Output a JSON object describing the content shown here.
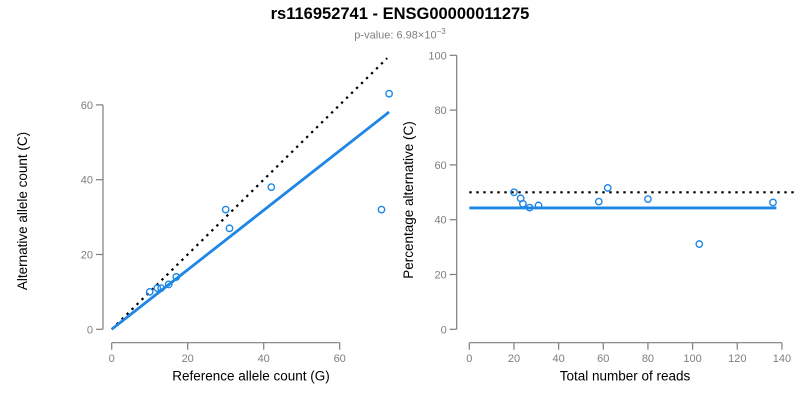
{
  "header": {
    "title": "rs116952741 - ENSG00000011275",
    "subtitle_prefix": "p-value: 6.98×10",
    "subtitle_exponent": "−3"
  },
  "colors": {
    "point_blue": "#1e87e5",
    "line_blue": "#1e87e5",
    "dotted_black": "#000000",
    "axis_gray": "#7e7e7e",
    "tick_label_gray": "#7e7e7e",
    "axis_label_black": "#000000",
    "subtitle_gray": "#7f7f7f"
  },
  "chart_data": [
    {
      "type": "scatter",
      "panel": "left",
      "xlabel": "Reference allele count (G)",
      "ylabel": "Alternative allele count (C)",
      "xticks": [
        0,
        20,
        40,
        60
      ],
      "yticks": [
        0,
        20,
        40,
        60
      ],
      "xlim": [
        0,
        75
      ],
      "ylim": [
        0,
        65
      ],
      "grid": false,
      "points": [
        [
          10,
          10
        ],
        [
          12,
          11
        ],
        [
          13,
          11
        ],
        [
          15,
          12
        ],
        [
          17,
          14
        ],
        [
          30,
          32
        ],
        [
          31,
          27
        ],
        [
          42,
          38
        ],
        [
          71,
          32
        ],
        [
          73,
          63
        ]
      ],
      "lines": [
        {
          "name": "identity-line",
          "style": "dotted",
          "color": "black",
          "x1": 0,
          "y1": 0,
          "x2": 72.5,
          "y2": 72.5
        },
        {
          "name": "regression-line",
          "style": "solid",
          "color": "blue",
          "x1": 0,
          "y1": 0,
          "x2": 73,
          "y2": 58.1
        }
      ]
    },
    {
      "type": "scatter",
      "panel": "right",
      "xlabel": "Total number of reads",
      "ylabel": "Percentage alternative (C)",
      "xticks": [
        0,
        20,
        40,
        60,
        80,
        100,
        120,
        140
      ],
      "yticks": [
        0,
        20,
        40,
        60,
        80,
        100
      ],
      "xlim": [
        0,
        146
      ],
      "ylim": [
        0,
        100
      ],
      "grid": false,
      "points": [
        [
          20,
          50
        ],
        [
          23,
          47.8
        ],
        [
          24,
          45.8
        ],
        [
          27,
          44.4
        ],
        [
          31,
          45.2
        ],
        [
          58,
          46.6
        ],
        [
          62,
          51.6
        ],
        [
          80,
          47.5
        ],
        [
          103,
          31.1
        ],
        [
          136,
          46.3
        ]
      ],
      "lines": [
        {
          "name": "null-line",
          "style": "dotted",
          "color": "black",
          "x1": 0,
          "y1": 50,
          "x2": 146,
          "y2": 50
        },
        {
          "name": "mean-line",
          "style": "solid",
          "color": "blue",
          "x1": 0,
          "y1": 44.3,
          "x2": 137.5,
          "y2": 44.3
        }
      ]
    }
  ]
}
